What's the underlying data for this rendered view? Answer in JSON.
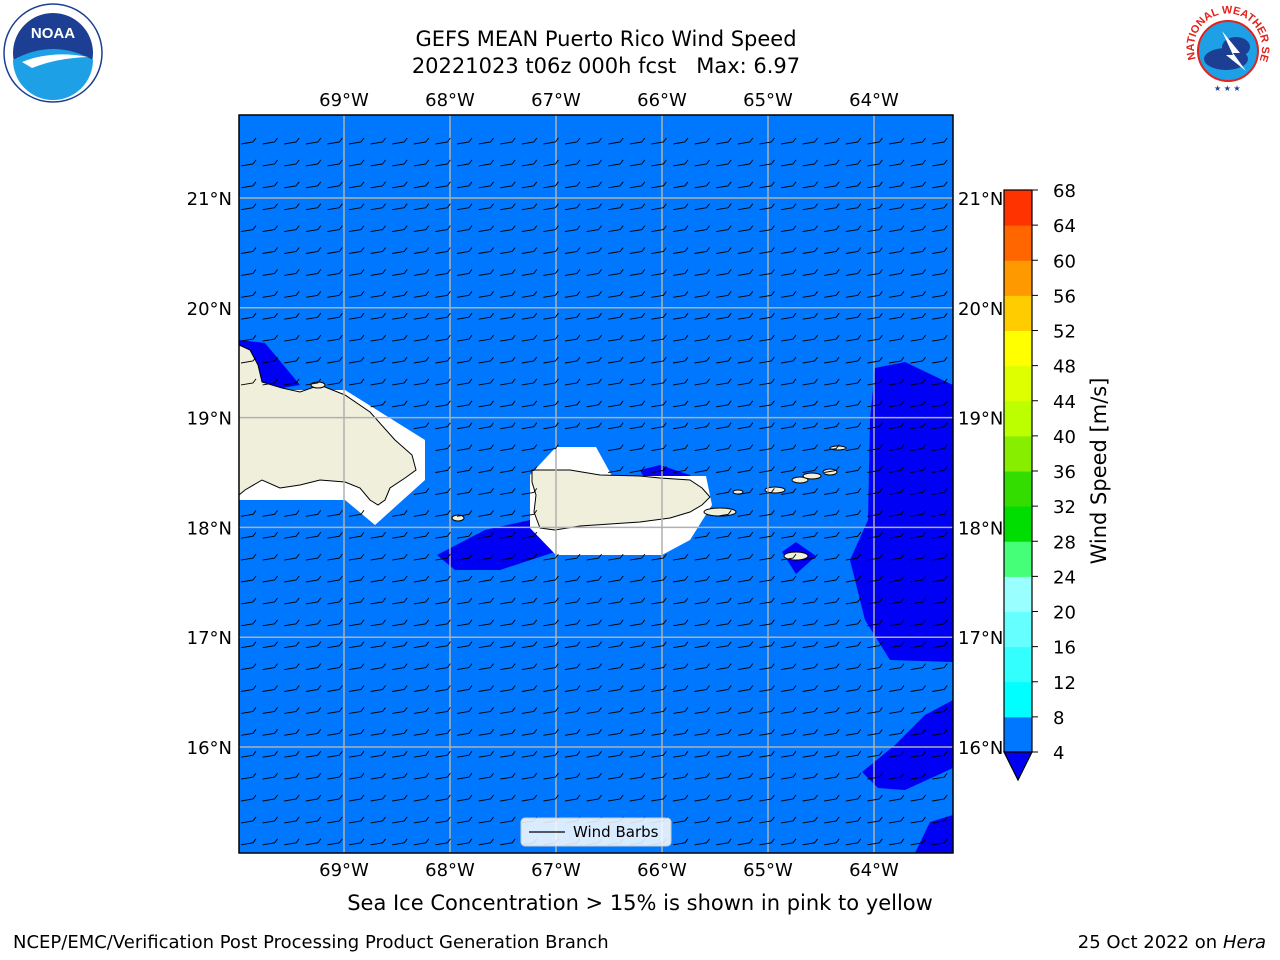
{
  "title_line1": "GEFS MEAN Puerto Rico Wind Speed",
  "title_line2": "20221023 t06z 000h fcst   Max: 6.97",
  "footer_left": "NCEP/EMC/Verification Post Processing Product Generation Branch",
  "footer_date": "25 Oct 2022 on",
  "footer_machine": "Hera",
  "note": "Sea Ice Concentration > 15% is shown in pink to yellow",
  "legend_label": "Wind Barbs",
  "noaa_logo_text": "NOAA",
  "nws_logo_text": "NATIONAL WEATHER SERVICE",
  "map": {
    "lon_range": [
      -70.0,
      -63.25
    ],
    "lat_range": [
      15.0,
      21.75
    ],
    "lon_ticks": [
      -69,
      -68,
      -67,
      -66,
      -65,
      -64
    ],
    "lon_labels": [
      "69°W",
      "68°W",
      "67°W",
      "66°W",
      "65°W",
      "64°W"
    ],
    "lat_ticks": [
      16,
      17,
      18,
      19,
      20,
      21
    ],
    "lat_labels": [
      "16°N",
      "17°N",
      "18°N",
      "19°N",
      "20°N",
      "21°N"
    ],
    "grid": true,
    "colors": {
      "ocean_4_8": "#0077ff",
      "ocean_below_4": "#0000f5",
      "land": "#efefdc",
      "grid": "#b0b0b0"
    },
    "wind_barb_direction": "from east"
  },
  "colorbar": {
    "label": "Wind Speed [m/s]",
    "ticks": [
      4,
      8,
      12,
      16,
      20,
      24,
      28,
      32,
      36,
      40,
      44,
      48,
      52,
      56,
      60,
      64,
      68
    ],
    "colors": [
      "#0077ff",
      "#00ffff",
      "#33ffff",
      "#66ffff",
      "#99ffff",
      "#44ff77",
      "#00dd00",
      "#33dd00",
      "#88ee00",
      "#bbff00",
      "#ddff00",
      "#ffff00",
      "#ffcc00",
      "#ff9900",
      "#ff6600",
      "#ff3300",
      "#ff0000"
    ],
    "under_color": "#0000f5"
  }
}
